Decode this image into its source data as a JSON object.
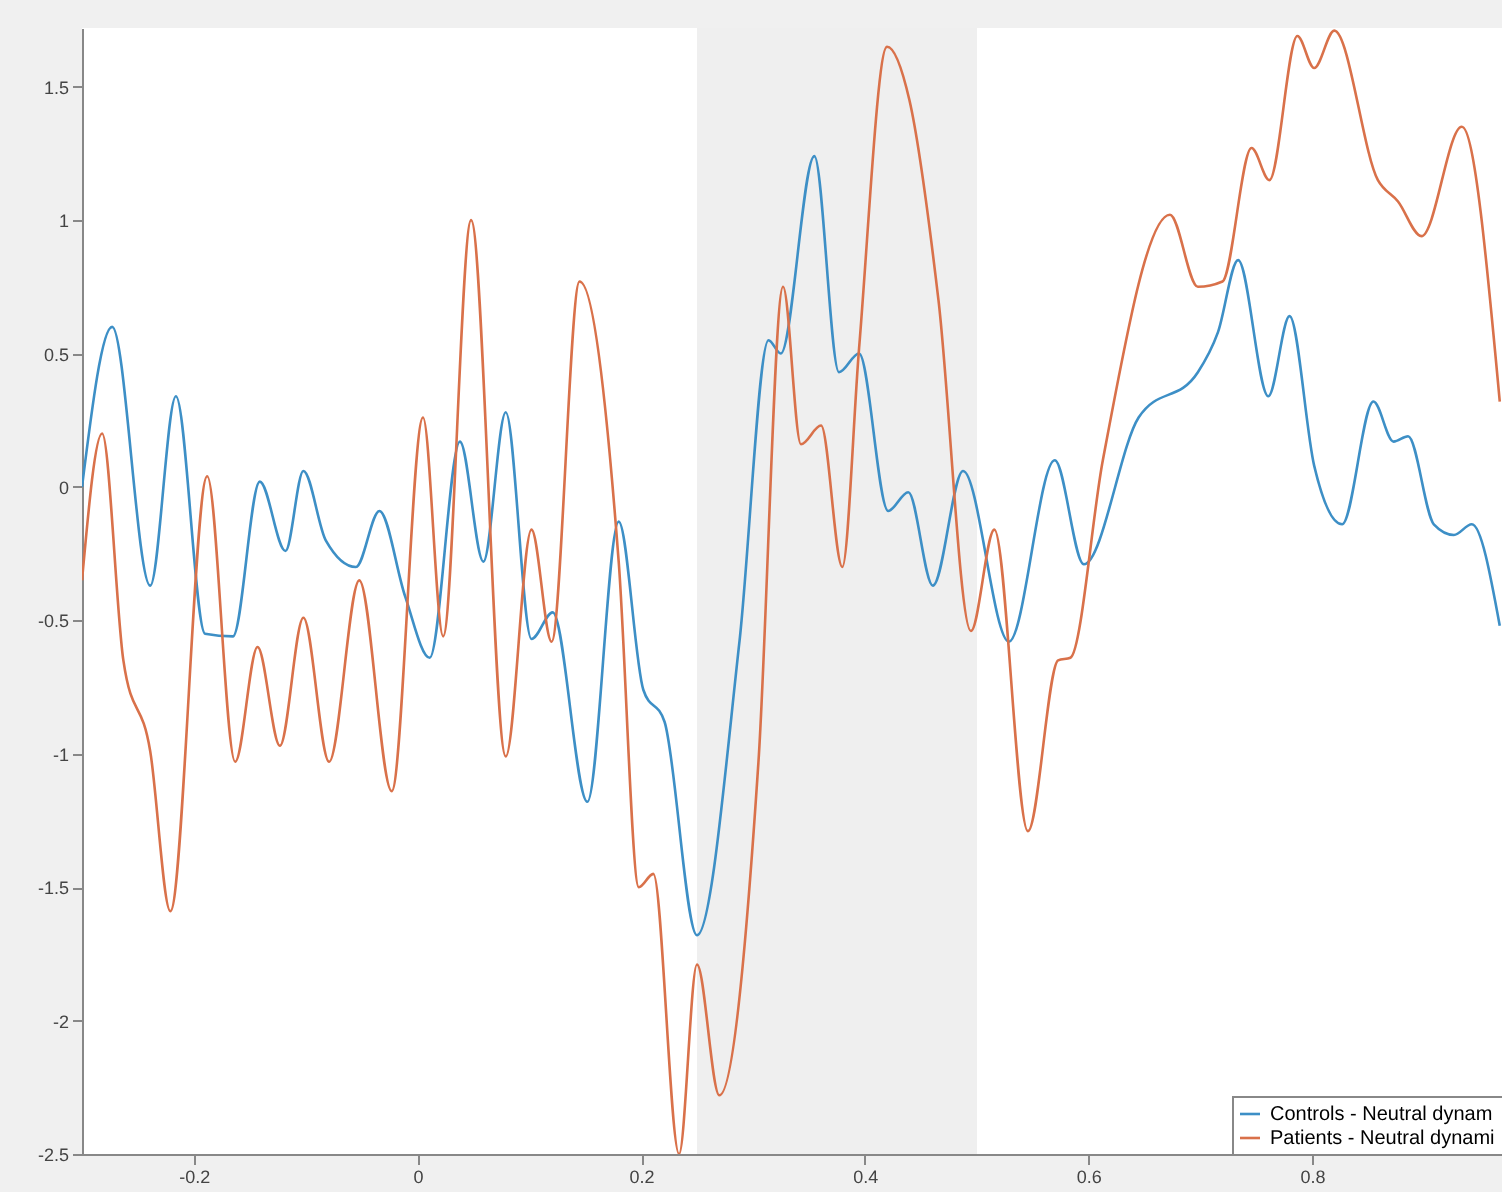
{
  "chart_data": {
    "type": "line",
    "xlim": [
      -0.3,
      0.97
    ],
    "ylim": [
      -2.5,
      1.72
    ],
    "xticks": [
      -0.2,
      0,
      0.2,
      0.4,
      0.6,
      0.8
    ],
    "yticks": [
      -2.5,
      -2,
      -1.5,
      -1,
      -0.5,
      0,
      0.5,
      1,
      1.5
    ],
    "grid": false,
    "legend": "bottom right",
    "line_style": "solid",
    "bands": [
      {
        "axis": "x",
        "from": 0.25,
        "to": 0.5,
        "color": "#efefef"
      }
    ],
    "series": [
      {
        "name": "Controls - Neutral dynam",
        "color": "#3d8fc6",
        "x": [
          -0.3,
          -0.273,
          -0.239,
          -0.216,
          -0.19,
          -0.165,
          -0.141,
          -0.118,
          -0.102,
          -0.082,
          -0.055,
          -0.034,
          -0.011,
          0.011,
          0.038,
          0.059,
          0.079,
          0.102,
          0.121,
          0.152,
          0.18,
          0.202,
          0.221,
          0.25,
          0.288,
          0.314,
          0.325,
          0.355,
          0.377,
          0.395,
          0.421,
          0.439,
          0.461,
          0.488,
          0.529,
          0.57,
          0.596,
          0.645,
          0.698,
          0.716,
          0.734,
          0.761,
          0.78,
          0.802,
          0.827,
          0.855,
          0.873,
          0.886,
          0.909,
          0.927,
          0.943,
          0.968
        ],
        "values": [
          0,
          0.6,
          -0.37,
          0.34,
          -0.55,
          -0.56,
          0.02,
          -0.24,
          0.06,
          -0.2,
          -0.3,
          -0.09,
          -0.41,
          -0.64,
          0.17,
          -0.28,
          0.28,
          -0.57,
          -0.47,
          -1.18,
          -0.13,
          -0.76,
          -0.88,
          -1.68,
          -0.58,
          0.55,
          0.5,
          1.24,
          0.43,
          0.5,
          -0.09,
          -0.02,
          -0.37,
          0.06,
          -0.58,
          0.1,
          -0.29,
          0.26,
          0.43,
          0.58,
          0.85,
          0.34,
          0.64,
          0.08,
          -0.14,
          0.32,
          0.17,
          0.19,
          -0.14,
          -0.18,
          -0.14,
          -0.52
        ]
      },
      {
        "name": "Patients - Neutral dynami",
        "color": "#d9714a",
        "x": [
          -0.3,
          -0.282,
          -0.263,
          -0.239,
          -0.221,
          -0.188,
          -0.163,
          -0.143,
          -0.123,
          -0.102,
          -0.079,
          -0.052,
          -0.023,
          0.005,
          0.023,
          0.048,
          0.079,
          0.102,
          0.12,
          0.145,
          0.18,
          0.198,
          0.211,
          0.234,
          0.25,
          0.27,
          0.305,
          0.327,
          0.343,
          0.361,
          0.38,
          0.395,
          0.42,
          0.44,
          0.466,
          0.495,
          0.516,
          0.546,
          0.573,
          0.584,
          0.613,
          0.673,
          0.698,
          0.72,
          0.746,
          0.762,
          0.787,
          0.802,
          0.82,
          0.859,
          0.877,
          0.898,
          0.934,
          0.968
        ],
        "values": [
          -0.35,
          0.2,
          -0.65,
          -0.99,
          -1.59,
          0.04,
          -1.03,
          -0.6,
          -0.97,
          -0.49,
          -1.03,
          -0.35,
          -1.14,
          0.26,
          -0.56,
          1.0,
          -1.01,
          -0.16,
          -0.58,
          0.77,
          -0.28,
          -1.5,
          -1.45,
          -2.5,
          -1.79,
          -2.28,
          -1.03,
          0.75,
          0.16,
          0.23,
          -0.3,
          0.52,
          1.65,
          1.45,
          0.7,
          -0.54,
          -0.16,
          -1.29,
          -0.65,
          -0.64,
          0.1,
          1.02,
          0.75,
          0.77,
          1.27,
          1.15,
          1.69,
          1.57,
          1.71,
          1.15,
          1.07,
          0.94,
          1.35,
          0.32
        ]
      }
    ]
  }
}
